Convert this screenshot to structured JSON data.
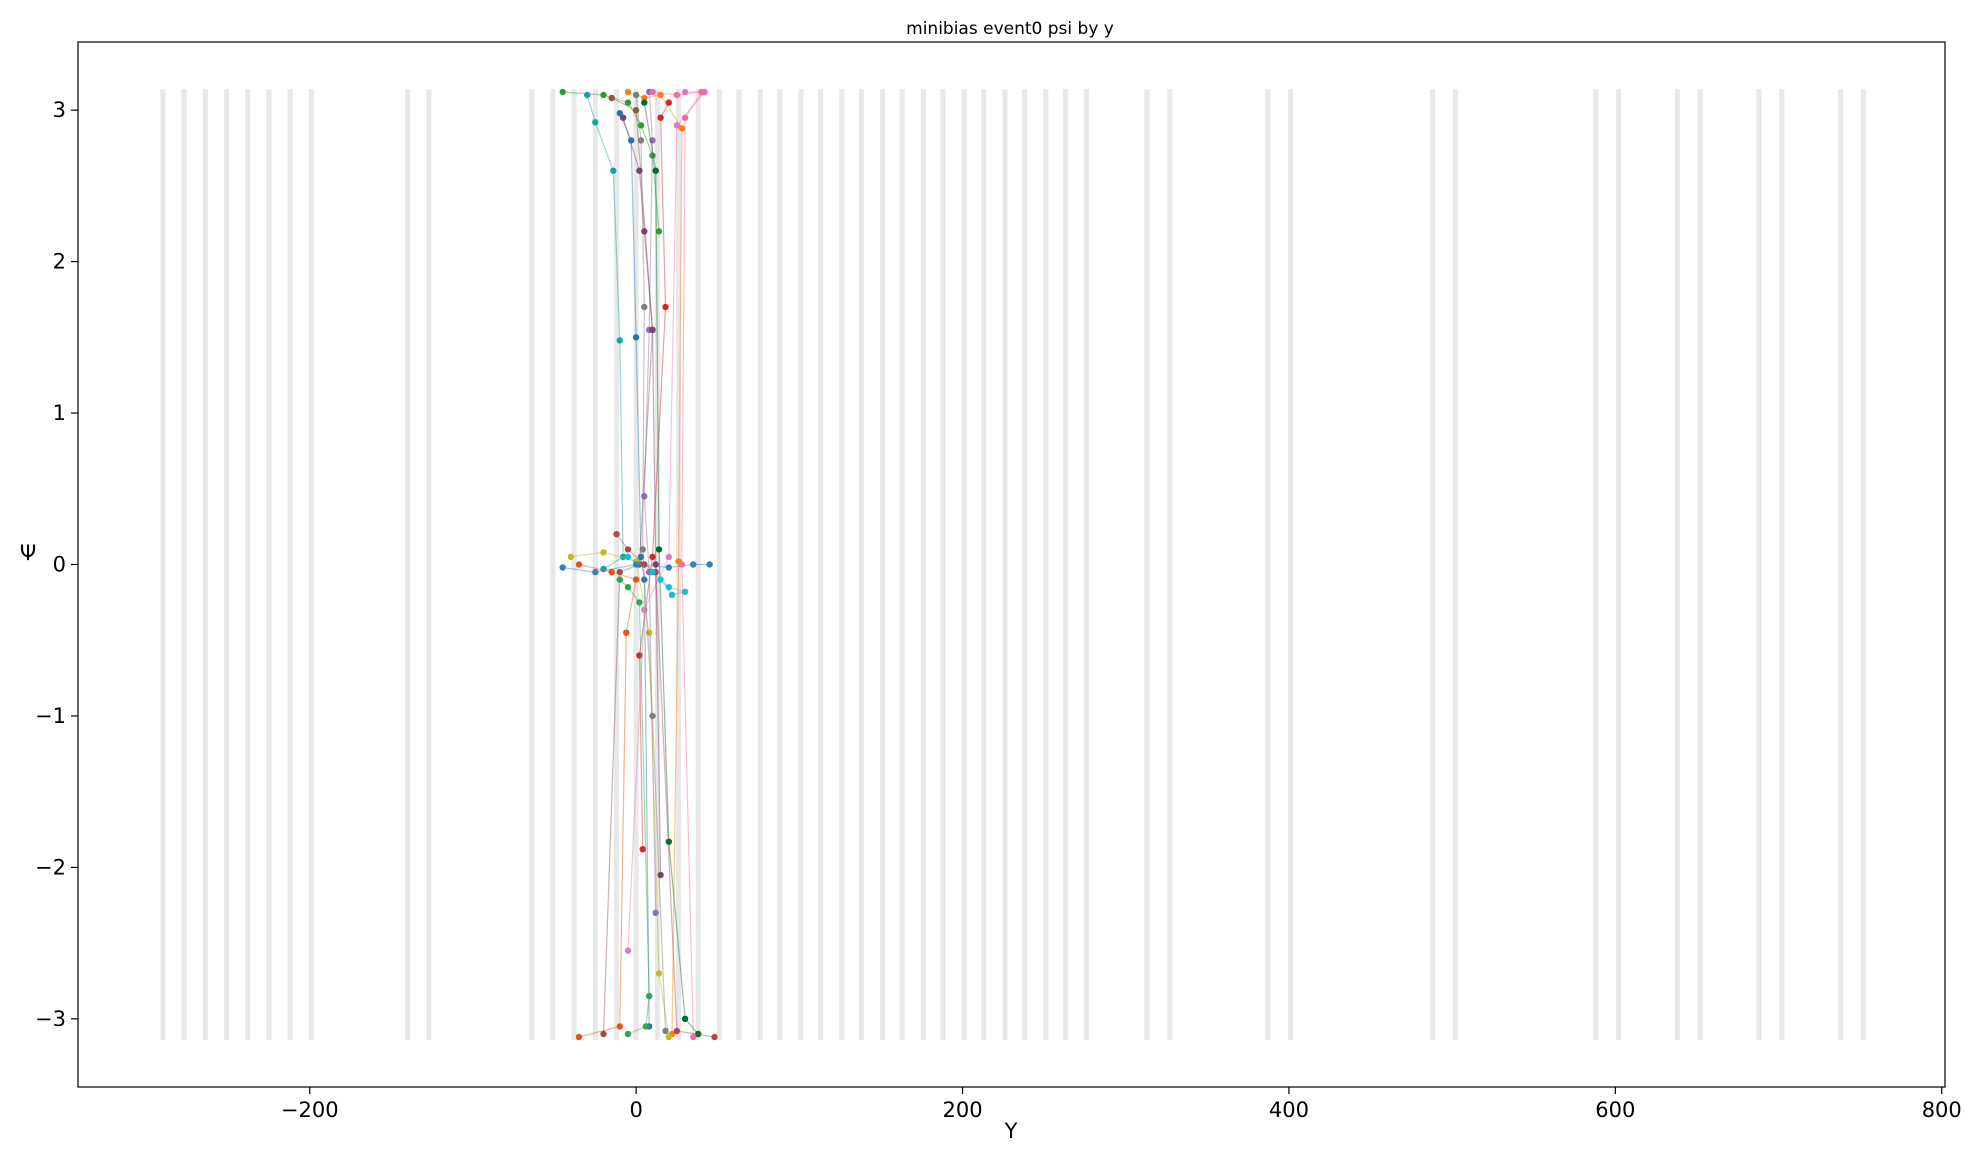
{
  "chart_data": {
    "type": "scatter",
    "title": "minibias event0 psi by y",
    "xlabel": "Y",
    "ylabel": "Ψ",
    "xlim": [
      -342,
      802
    ],
    "ylim": [
      -3.45,
      3.45
    ],
    "xticks": [
      -200,
      0,
      200,
      400,
      600,
      800
    ],
    "yticks": [
      -3,
      -2,
      -1,
      0,
      1,
      2,
      3
    ],
    "grid": false,
    "legend": "none",
    "background_bands": {
      "color": "#e8e8e8",
      "y_range": [
        -3.14,
        3.14
      ],
      "x_positions": [
        -290,
        -277,
        -264,
        -251,
        -238,
        -225,
        -212,
        -199,
        -140,
        -127,
        -64,
        -51,
        -38,
        -25,
        -12,
        0,
        13,
        26,
        38,
        51,
        63,
        76,
        88,
        101,
        113,
        126,
        138,
        151,
        163,
        176,
        188,
        201,
        213,
        226,
        238,
        251,
        263,
        276,
        313,
        327,
        387,
        401,
        488,
        502,
        588,
        602,
        638,
        652,
        688,
        702,
        738,
        752
      ]
    },
    "series": [
      {
        "color": "#2ca02c",
        "line": [
          [
            -45,
            3.12
          ],
          [
            -20,
            3.1
          ],
          [
            -5,
            3.05
          ],
          [
            3,
            2.9
          ],
          [
            10,
            2.7
          ],
          [
            14,
            2.2
          ]
        ]
      },
      {
        "color": "#ff7f0e",
        "line": [
          [
            -5,
            3.12
          ],
          [
            5,
            3.08
          ],
          [
            15,
            3.1
          ],
          [
            28,
            2.88
          ],
          [
            26,
            0.02
          ],
          [
            22,
            -3.1
          ]
        ]
      },
      {
        "color": "#17a2a2",
        "line": [
          [
            -30,
            3.1
          ],
          [
            -25,
            2.92
          ],
          [
            -14,
            2.6
          ],
          [
            -10,
            1.48
          ],
          [
            -8,
            0.05
          ],
          [
            -20,
            -0.03
          ]
        ]
      },
      {
        "color": "#1f77b4",
        "line": [
          [
            -10,
            2.98
          ],
          [
            -3,
            2.8
          ],
          [
            0,
            1.5
          ],
          [
            3,
            0.05
          ],
          [
            5,
            -0.1
          ],
          [
            8,
            -3.05
          ]
        ]
      },
      {
        "color": "#d62728",
        "line": [
          [
            20,
            3.05
          ],
          [
            15,
            2.95
          ],
          [
            18,
            1.7
          ],
          [
            10,
            0.05
          ],
          [
            2,
            -0.6
          ],
          [
            4,
            -1.88
          ]
        ]
      },
      {
        "color": "#9467bd",
        "line": [
          [
            8,
            3.12
          ],
          [
            10,
            2.8
          ],
          [
            8,
            1.55
          ],
          [
            5,
            0.45
          ],
          [
            8,
            -0.05
          ],
          [
            12,
            -2.3
          ]
        ]
      },
      {
        "color": "#e377c2",
        "line": [
          [
            30,
            3.12
          ],
          [
            42,
            3.12
          ],
          [
            25,
            2.9
          ],
          [
            20,
            0.05
          ],
          [
            5,
            -0.3
          ],
          [
            -5,
            -2.55
          ]
        ]
      },
      {
        "color": "#8c564b",
        "line": [
          [
            -15,
            3.08
          ],
          [
            0,
            3.0
          ],
          [
            10,
            1.55
          ],
          [
            2,
            0.0
          ],
          [
            -10,
            -0.05
          ],
          [
            -20,
            -3.1
          ]
        ]
      },
      {
        "color": "#bcbd22",
        "line": [
          [
            -40,
            0.05
          ],
          [
            -20,
            0.08
          ],
          [
            0,
            0.02
          ],
          [
            8,
            -0.45
          ],
          [
            14,
            -2.7
          ],
          [
            20,
            -3.12
          ]
        ]
      },
      {
        "color": "#7f7f7f",
        "line": [
          [
            0,
            3.1
          ],
          [
            3,
            2.8
          ],
          [
            5,
            1.7
          ],
          [
            4,
            0.1
          ],
          [
            10,
            -1.0
          ],
          [
            18,
            -3.08
          ]
        ]
      },
      {
        "color": "#006d2c",
        "line": [
          [
            5,
            3.05
          ],
          [
            12,
            2.6
          ],
          [
            14,
            0.1
          ],
          [
            20,
            -1.83
          ],
          [
            30,
            -3.0
          ],
          [
            38,
            -3.1
          ]
        ]
      },
      {
        "color": "#e6550d",
        "line": [
          [
            -35,
            0.0
          ],
          [
            -15,
            -0.05
          ],
          [
            0,
            -0.1
          ],
          [
            -6,
            -0.45
          ],
          [
            -10,
            -3.05
          ],
          [
            -35,
            -3.12
          ]
        ]
      },
      {
        "color": "#3182bd",
        "line": [
          [
            -45,
            -0.02
          ],
          [
            -25,
            -0.05
          ],
          [
            0,
            0.0
          ],
          [
            20,
            -0.02
          ],
          [
            35,
            0.0
          ],
          [
            45,
            0.0
          ]
        ]
      },
      {
        "color": "#ad494a",
        "line": [
          [
            -12,
            0.2
          ],
          [
            -5,
            0.1
          ],
          [
            5,
            0.0
          ],
          [
            12,
            -0.05
          ],
          [
            25,
            -3.08
          ],
          [
            48,
            -3.12
          ]
        ]
      },
      {
        "color": "#31a354",
        "line": [
          [
            -10,
            -0.1
          ],
          [
            -5,
            -0.15
          ],
          [
            2,
            -0.25
          ],
          [
            8,
            -2.85
          ],
          [
            6,
            -3.05
          ],
          [
            -5,
            -3.1
          ]
        ]
      },
      {
        "color": "#17becf",
        "line": [
          [
            -5,
            0.05
          ],
          [
            10,
            -0.05
          ],
          [
            20,
            -0.15
          ],
          [
            30,
            -0.18
          ],
          [
            22,
            -0.2
          ],
          [
            15,
            -0.1
          ]
        ]
      },
      {
        "color": "#7b4173",
        "line": [
          [
            -8,
            2.95
          ],
          [
            2,
            2.6
          ],
          [
            5,
            2.2
          ],
          [
            10,
            1.55
          ],
          [
            12,
            0.0
          ],
          [
            15,
            -2.05
          ]
        ]
      },
      {
        "color": "#f768a1",
        "line": [
          [
            10,
            3.12
          ],
          [
            25,
            3.1
          ],
          [
            40,
            3.12
          ],
          [
            30,
            2.95
          ],
          [
            28,
            0.0
          ],
          [
            35,
            -3.12
          ]
        ]
      }
    ]
  }
}
